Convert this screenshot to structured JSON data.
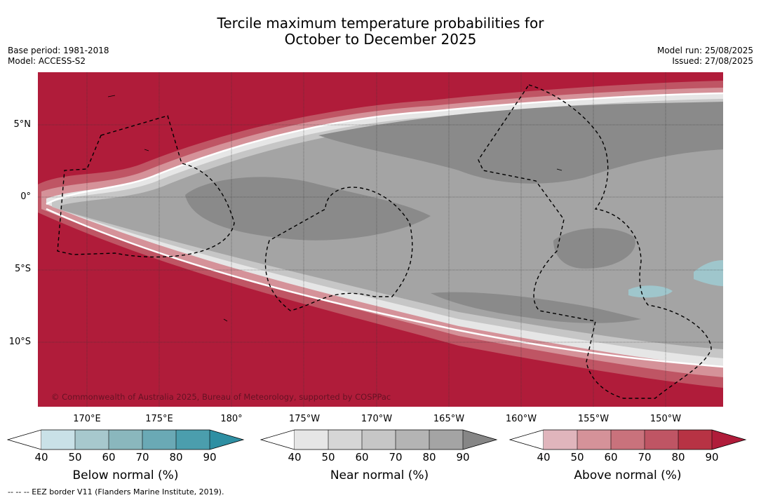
{
  "title": {
    "line1": "Tercile maximum temperature probabilities for",
    "line2": "October to December 2025"
  },
  "meta": {
    "base_period": "Base period: 1981-2018",
    "model": "Model: ACCESS-S2",
    "model_run": "Model run: 25/08/2025",
    "issued": "Issued: 27/08/2025"
  },
  "map": {
    "lat_labels": [
      "5°N",
      "0°",
      "5°S",
      "10°S"
    ],
    "lon_labels": [
      "170°E",
      "175°E",
      "180°",
      "175°W",
      "170°W",
      "165°W",
      "160°W",
      "155°W",
      "150°W"
    ],
    "copyright": "© Commonwealth of Australia 2025, Bureau of Meteorology, supported by COSPPac",
    "colors": {
      "above_dominant": "#b01c3a",
      "near_normal_70_80": "#a4a4a4",
      "near_normal_80_90": "#8a8a8a",
      "below_normal": "#9fc6cc",
      "eez_border": "#000000"
    }
  },
  "colorbars": {
    "below": {
      "label": "Below normal (%)",
      "ticks": [
        "40",
        "50",
        "60",
        "70",
        "80",
        "90"
      ],
      "colors": [
        "#c9e1e7",
        "#a7c8cd",
        "#8ab7bd",
        "#6aa9b5",
        "#4b9ead",
        "#2e8fa3"
      ]
    },
    "near": {
      "label": "Near normal (%)",
      "ticks": [
        "40",
        "50",
        "60",
        "70",
        "80",
        "90"
      ],
      "colors": [
        "#e6e6e6",
        "#d6d6d6",
        "#c6c6c6",
        "#b4b4b4",
        "#a4a4a4",
        "#868686"
      ]
    },
    "above": {
      "label": "Above normal (%)",
      "ticks": [
        "40",
        "50",
        "60",
        "70",
        "80",
        "90"
      ],
      "colors": [
        "#e0b5bc",
        "#d59299",
        "#c9727c",
        "#bf5564",
        "#b73344",
        "#b01c3a"
      ]
    }
  },
  "footnote": "-- -- -- EEZ border V11 (Flanders Marine Institute, 2019)."
}
